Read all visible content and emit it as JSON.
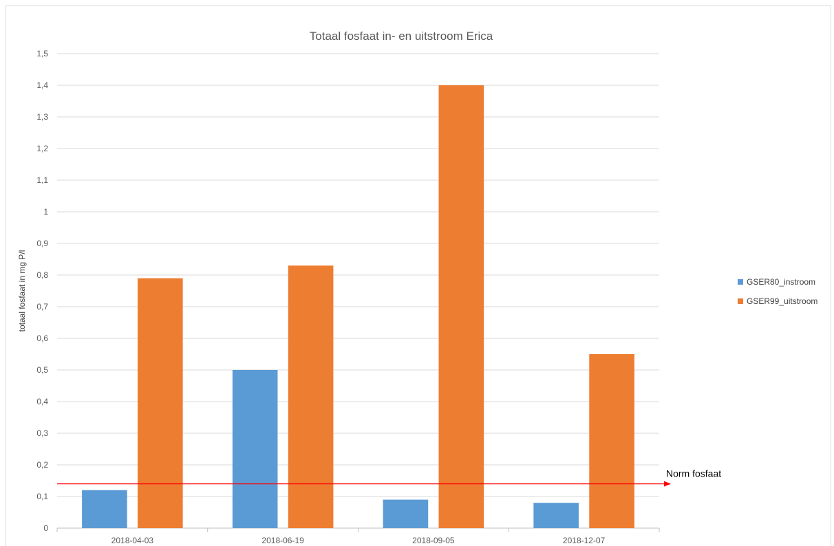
{
  "chart_data": {
    "type": "bar",
    "title": "Totaal fosfaat in- en uitstroom Erica",
    "ylabel": "totaal fosfaat in mg P/l",
    "xlabel": "",
    "categories": [
      "2018-04-03",
      "2018-06-19",
      "2018-09-05",
      "2018-12-07"
    ],
    "series": [
      {
        "name": "GSER80_instroom",
        "color": "#5b9bd5",
        "values": [
          0.12,
          0.5,
          0.09,
          0.08
        ]
      },
      {
        "name": "GSER99_uitstroom",
        "color": "#ed7d31",
        "values": [
          0.79,
          0.83,
          1.4,
          0.55
        ]
      }
    ],
    "ylim": [
      0,
      1.5
    ],
    "yticks": [
      "0",
      "0,1",
      "0,2",
      "0,3",
      "0,4",
      "0,5",
      "0,6",
      "0,7",
      "0,8",
      "0,9",
      "1",
      "1,1",
      "1,2",
      "1,3",
      "1,4",
      "1,5"
    ],
    "grid": true,
    "legend": "right",
    "reference_line": {
      "label": "Norm fosfaat",
      "value": 0.14,
      "color": "#ff0000"
    }
  }
}
